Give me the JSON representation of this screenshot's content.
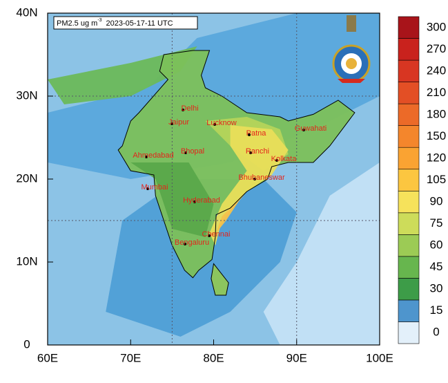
{
  "title": {
    "text": "PM2.5 ug m",
    "superscript": "-3",
    "time": "2023-05-17-11 UTC"
  },
  "map": {
    "xlim": [
      60,
      100
    ],
    "ylim": [
      0,
      40
    ],
    "xticks": [
      {
        "value": 60,
        "label": "60E"
      },
      {
        "value": 70,
        "label": "70E"
      },
      {
        "value": 80,
        "label": "80E"
      },
      {
        "value": 90,
        "label": "90E"
      },
      {
        "value": 100,
        "label": "100E"
      }
    ],
    "yticks": [
      0,
      {
        "value": 10,
        "label": "10N"
      },
      {
        "value": 20,
        "label": "20N"
      },
      {
        "value": 30,
        "label": "30N"
      },
      {
        "value": 40,
        "label": "40N"
      }
    ],
    "grid_lon": [
      75,
      90
    ],
    "grid_lat": [
      15,
      30
    ]
  },
  "cities": [
    "Delhi",
    "Jaipur",
    "Lucknow",
    "Patna",
    "Guwahati",
    "Ahmedabad",
    "Bhopal",
    "Ranchi",
    "Kolkata",
    "Bhubaneswar",
    "Mumbai",
    "Hyderabad",
    "Chennai",
    "Bengaluru"
  ],
  "colorbar": {
    "ticks": [
      0,
      15,
      30,
      45,
      60,
      75,
      90,
      105,
      120,
      150,
      180,
      210,
      240,
      270,
      300
    ],
    "colors": [
      "#e3f0fa",
      "#4e95cd",
      "#3d9c48",
      "#67b64e",
      "#9ccb55",
      "#cddc5a",
      "#f6e25b",
      "#fcc640",
      "#faa332",
      "#f4862c",
      "#ec6a28",
      "#e34f25",
      "#d83622",
      "#c9221d",
      "#a8141a"
    ]
  }
}
